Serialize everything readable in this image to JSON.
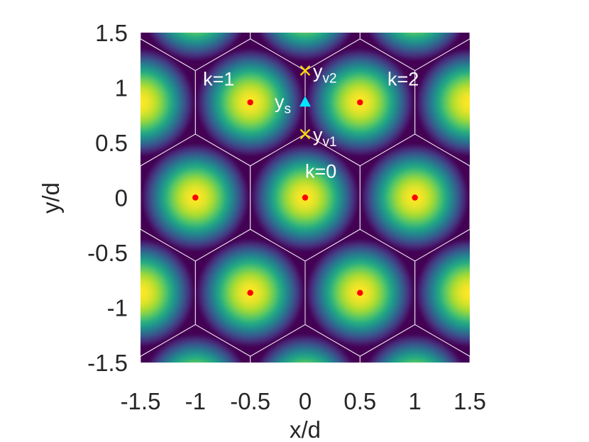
{
  "chart_data": {
    "type": "heatmap",
    "xlabel": "x/d",
    "ylabel": "y/d",
    "xlim": [
      -1.5,
      1.5
    ],
    "ylim": [
      -1.5,
      1.5
    ],
    "xticks": [
      -1.5,
      -1,
      -0.5,
      0,
      0.5,
      1,
      1.5
    ],
    "yticks": [
      -1.5,
      -1,
      -0.5,
      0,
      0.5,
      1,
      1.5
    ],
    "xtick_labels": [
      "-1.5",
      "-1",
      "-0.5",
      "0",
      "0.5",
      "1",
      "1.5"
    ],
    "ytick_labels": [
      "-1.5",
      "-1",
      "-0.5",
      "0",
      "0.5",
      "1",
      "1.5"
    ],
    "colormap": "viridis",
    "lattice": {
      "spacing": 1,
      "description_shape": "hexagonal",
      "peak_points": [
        [
          0,
          0
        ],
        [
          1,
          0
        ],
        [
          -1,
          0
        ],
        [
          0.5,
          0.866
        ],
        [
          -0.5,
          0.866
        ],
        [
          0.5,
          -0.866
        ],
        [
          -0.5,
          -0.866
        ],
        [
          1.5,
          0.866
        ],
        [
          -1.5,
          0.866
        ],
        [
          1.5,
          -0.866
        ],
        [
          -1.5,
          -0.866
        ],
        [
          0,
          1.732
        ],
        [
          1,
          1.732
        ],
        [
          -1,
          1.732
        ],
        [
          0,
          -1.732
        ],
        [
          1,
          -1.732
        ],
        [
          -1,
          -1.732
        ]
      ],
      "peak_color": "#ff0000"
    },
    "red_dots": [
      [
        0,
        0
      ],
      [
        1,
        0
      ],
      [
        -1,
        0
      ],
      [
        0.5,
        0.866
      ],
      [
        -0.5,
        0.866
      ],
      [
        0.5,
        -0.866
      ],
      [
        -0.5,
        -0.866
      ]
    ],
    "vertex_markers": [
      {
        "label": "y",
        "sub": "v1",
        "x": 0,
        "y": 0.577,
        "color": "#ffd700"
      },
      {
        "label": "y",
        "sub": "v2",
        "x": 0,
        "y": 1.155,
        "color": "#ffd700"
      }
    ],
    "saddle_marker": {
      "label": "y",
      "sub": "s",
      "x": 0,
      "y": 0.866,
      "color": "#00e5ff"
    },
    "annotations": [
      {
        "text": "k=0",
        "x": 0,
        "y": 0.18
      },
      {
        "text": "k=1",
        "x": -0.93,
        "y": 1.02
      },
      {
        "text": "k=2",
        "x": 0.75,
        "y": 1.02
      }
    ],
    "grid": false,
    "cell_line_color": "#ffffff"
  }
}
